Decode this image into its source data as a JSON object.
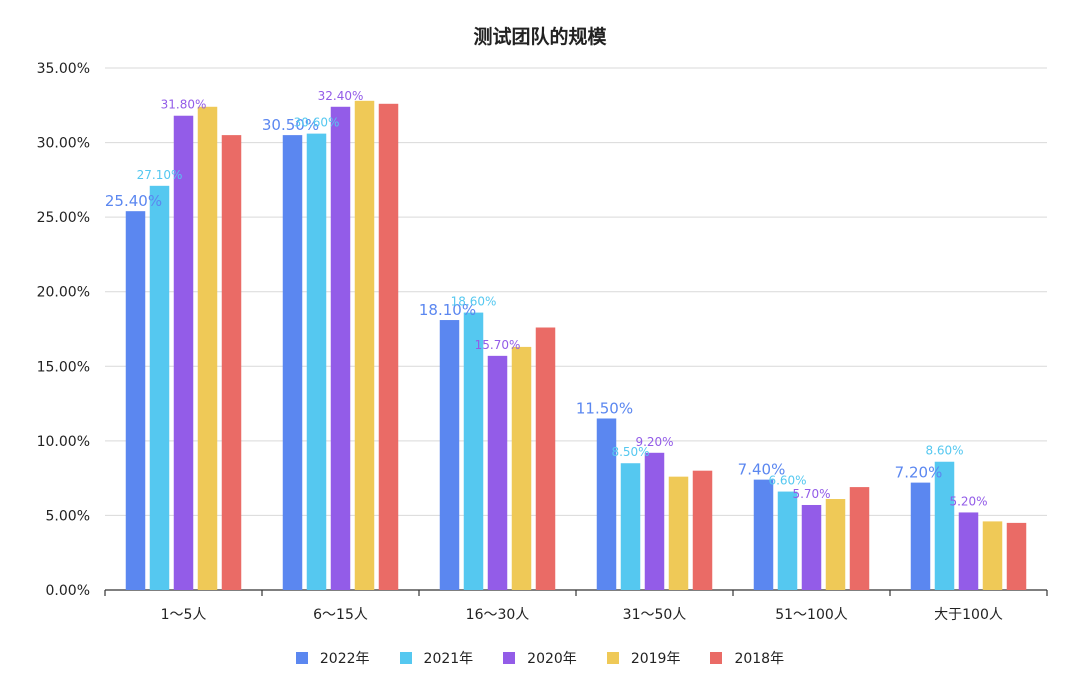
{
  "chart_data": {
    "type": "bar",
    "title": "测试团队的规模",
    "categories": [
      "1～5人",
      "6～15人",
      "16～30人",
      "31～50人",
      "51～100人",
      "大于100人"
    ],
    "y_ticks": [
      "0.00%",
      "5.00%",
      "10.00%",
      "15.00%",
      "20.00%",
      "25.00%",
      "30.00%",
      "35.00%"
    ],
    "ylim": [
      0,
      35
    ],
    "grid": true,
    "legend_position": "bottom",
    "series": [
      {
        "name": "2022年",
        "color": "#5B87F0",
        "values": [
          25.4,
          30.5,
          18.1,
          11.5,
          7.4,
          7.2
        ],
        "labels": [
          "25.40%",
          "30.50%",
          "18.10%",
          "11.50%",
          "7.40%",
          "7.20%"
        ]
      },
      {
        "name": "2021年",
        "color": "#55C8F0",
        "values": [
          27.1,
          30.6,
          18.6,
          8.5,
          6.6,
          8.6
        ],
        "labels": [
          "27.10%",
          "30.60%",
          "18.60%",
          "8.50%",
          "6.60%",
          "8.60%"
        ]
      },
      {
        "name": "2020年",
        "color": "#935CE8",
        "values": [
          31.8,
          32.4,
          15.7,
          9.2,
          5.7,
          5.2
        ],
        "labels": [
          "31.80%",
          "32.40%",
          "15.70%",
          "9.20%",
          "5.70%",
          "5.20%"
        ]
      },
      {
        "name": "2019年",
        "color": "#EFC957",
        "values": [
          32.4,
          32.8,
          16.3,
          7.6,
          6.1,
          4.6
        ],
        "labels": [
          "",
          "",
          "",
          "",
          "",
          ""
        ]
      },
      {
        "name": "2018年",
        "color": "#EA6B66",
        "values": [
          30.5,
          32.6,
          17.6,
          8.0,
          6.9,
          4.5
        ],
        "labels": [
          "",
          "",
          "",
          "",
          "",
          ""
        ]
      }
    ]
  }
}
